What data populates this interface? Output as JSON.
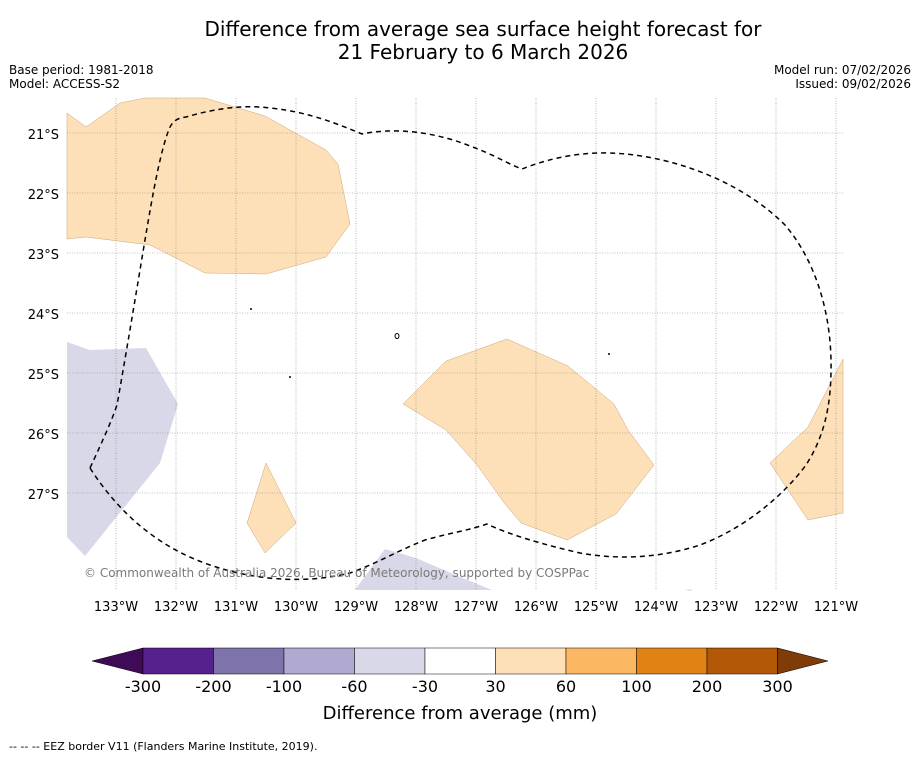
{
  "title": {
    "line1": "Difference from average sea surface height forecast for",
    "line2": "21 February to 6 March 2026"
  },
  "meta": {
    "base_period": "Base period: 1981-2018",
    "model": "Model: ACCESS-S2",
    "model_run": "Model run: 07/02/2026",
    "issued": "Issued: 09/02/2026"
  },
  "map": {
    "lat_labels": [
      "21°S",
      "22°S",
      "23°S",
      "24°S",
      "25°S",
      "26°S",
      "27°S"
    ],
    "lon_labels": [
      "133°W",
      "132°W",
      "131°W",
      "130°W",
      "129°W",
      "128°W",
      "127°W",
      "126°W",
      "125°W",
      "124°W",
      "123°W",
      "122°W",
      "121°W"
    ],
    "copyright": "© Commonwealth of Australia 2026, Bureau of Meteorology, supported by COSPPac",
    "colors": {
      "positive_30_60": "#fde0b8",
      "negative_30_60": "#d8d8e9",
      "eez_line": "#000000",
      "grid": "#888888"
    }
  },
  "colorbar": {
    "title": "Difference from average (mm)",
    "tick_labels": [
      "-300",
      "-200",
      "-100",
      "-60",
      "-30",
      "30",
      "60",
      "100",
      "200",
      "300"
    ],
    "colors": [
      "#3f0b57",
      "#56218c",
      "#7e73ab",
      "#b0aad2",
      "#d8d8e9",
      "#ffffff",
      "#fde0b8",
      "#fbb762",
      "#e08214",
      "#b35807",
      "#7f3b08"
    ]
  },
  "footnote": "--  --  -- EEZ border V11 (Flanders Marine Institute, 2019)."
}
